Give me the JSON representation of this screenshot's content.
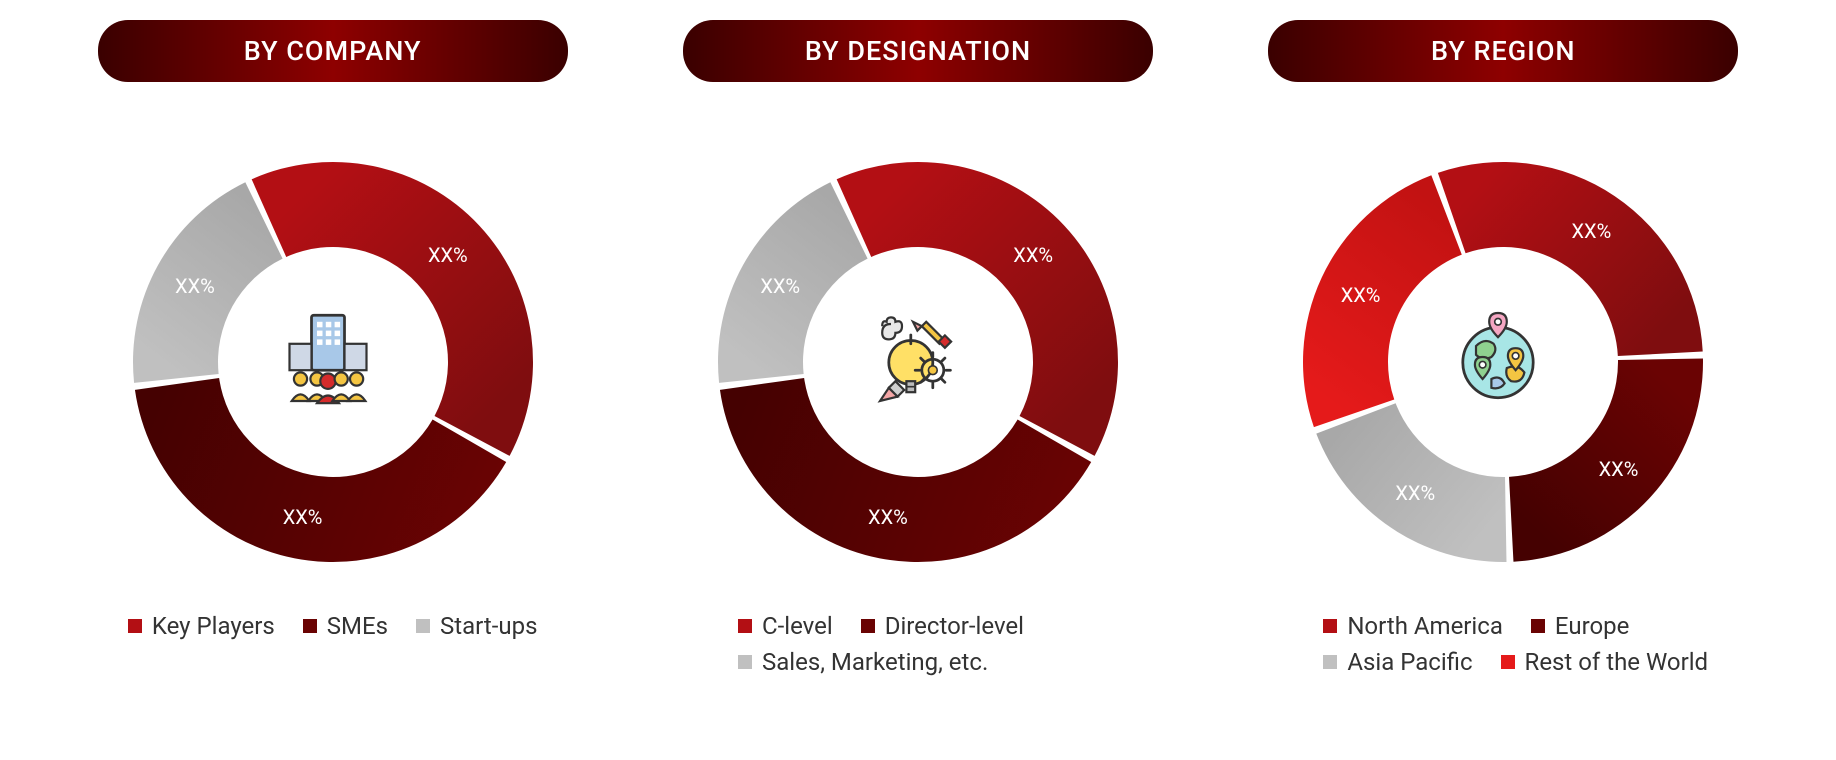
{
  "background_color": "#ffffff",
  "text_color": "#333333",
  "pill_gradient": [
    "#3a0000",
    "#8e0000",
    "#3a0000"
  ],
  "pill_text_color": "#ffffff",
  "label_fontsize": 20,
  "legend_fontsize": 24,
  "donut_outer_r": 200,
  "donut_inner_r": 115,
  "slice_label": "XX%",
  "panels": [
    {
      "title": "BY COMPANY",
      "icon": "company",
      "slices": [
        {
          "name": "Key Players",
          "value": 40,
          "color": "#b30f14",
          "gradient_end": "#7f0d0f"
        },
        {
          "name": "SMEs",
          "value": 40,
          "color": "#6a0303",
          "gradient_end": "#450101"
        },
        {
          "name": "Start-ups",
          "value": 20,
          "color": "#c0c0c0",
          "gradient_end": "#a8a8a8"
        }
      ],
      "start_angle_deg": -25,
      "legend_layout": "center"
    },
    {
      "title": "BY DESIGNATION",
      "icon": "designation",
      "slices": [
        {
          "name": "C-level",
          "value": 40,
          "color": "#b30f14",
          "gradient_end": "#7f0d0f"
        },
        {
          "name": "Director-level",
          "value": 40,
          "color": "#6a0303",
          "gradient_end": "#450101"
        },
        {
          "name": "Sales, Marketing, etc.",
          "value": 20,
          "color": "#c0c0c0",
          "gradient_end": "#a8a8a8"
        }
      ],
      "start_angle_deg": -25,
      "legend_layout": "left"
    },
    {
      "title": "BY REGION",
      "icon": "region",
      "slices": [
        {
          "name": "North America",
          "value": 30,
          "color": "#b30f14",
          "gradient_end": "#7f0d0f"
        },
        {
          "name": "Europe",
          "value": 25,
          "color": "#6a0303",
          "gradient_end": "#450101"
        },
        {
          "name": "Asia Pacific",
          "value": 20,
          "color": "#c0c0c0",
          "gradient_end": "#a8a8a8"
        },
        {
          "name": "Rest of the World",
          "value": 25,
          "color": "#e51a1a",
          "gradient_end": "#c21212"
        }
      ],
      "start_angle_deg": -20,
      "legend_layout": "left"
    }
  ]
}
